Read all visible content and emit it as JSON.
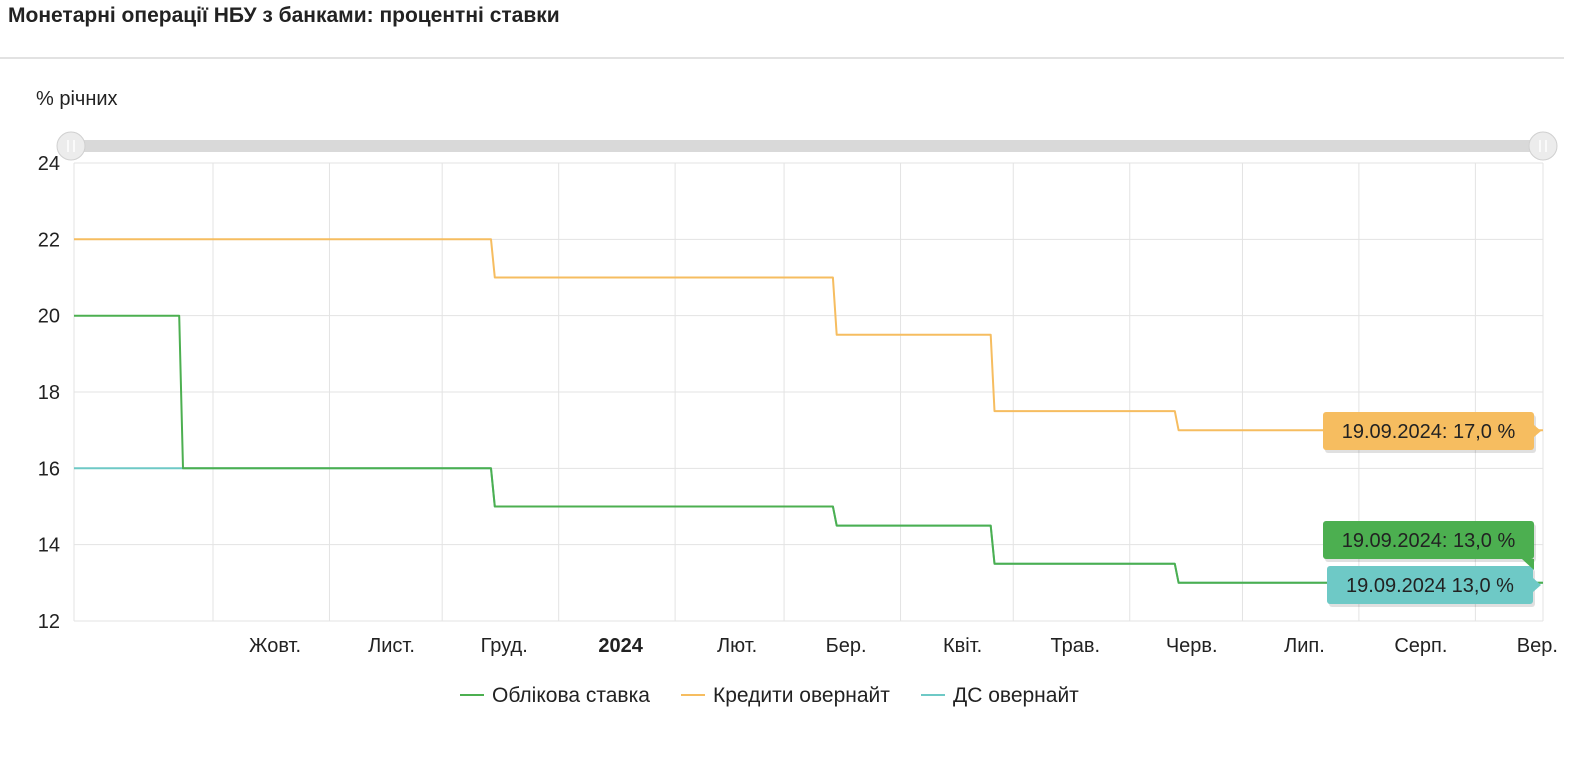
{
  "page": {
    "title": "Монетарні операції НБУ з банками: процентні ставки"
  },
  "chart_data": {
    "type": "line",
    "step": true,
    "title": "Монетарні операції НБУ з банками: процентні ставки",
    "ylabel": "% річних",
    "ylim": [
      12,
      24
    ],
    "yticks": [
      "12",
      "14",
      "16",
      "18",
      "20",
      "22",
      "24"
    ],
    "xlim": [
      "2023-08-25",
      "2024-09-19"
    ],
    "xticks": [
      {
        "date": "2023-10-01",
        "label": "Жовт.",
        "bold": false
      },
      {
        "date": "2023-11-01",
        "label": "Лист.",
        "bold": false
      },
      {
        "date": "2023-12-01",
        "label": "Груд.",
        "bold": false
      },
      {
        "date": "2024-01-01",
        "label": "2024",
        "bold": true
      },
      {
        "date": "2024-02-01",
        "label": "Лют.",
        "bold": false
      },
      {
        "date": "2024-03-01",
        "label": "Бер.",
        "bold": false
      },
      {
        "date": "2024-04-01",
        "label": "Квіт.",
        "bold": false
      },
      {
        "date": "2024-05-01",
        "label": "Трав.",
        "bold": false
      },
      {
        "date": "2024-06-01",
        "label": "Черв.",
        "bold": false
      },
      {
        "date": "2024-07-01",
        "label": "Лип.",
        "bold": false
      },
      {
        "date": "2024-08-01",
        "label": "Серп.",
        "bold": false
      },
      {
        "date": "2024-09-01",
        "label": "Вер.",
        "bold": false
      }
    ],
    "grid": true,
    "legend_position": "bottom",
    "series": [
      {
        "name": "Облікова ставка",
        "color": "#4caf50",
        "points": [
          {
            "x": "2023-08-25",
            "y": 20
          },
          {
            "x": "2023-09-22",
            "y": 20
          },
          {
            "x": "2023-09-23",
            "y": 16
          },
          {
            "x": "2023-12-14",
            "y": 16
          },
          {
            "x": "2023-12-15",
            "y": 15
          },
          {
            "x": "2024-03-14",
            "y": 15
          },
          {
            "x": "2024-03-15",
            "y": 14.5
          },
          {
            "x": "2024-04-25",
            "y": 14.5
          },
          {
            "x": "2024-04-26",
            "y": 13.5
          },
          {
            "x": "2024-06-13",
            "y": 13.5
          },
          {
            "x": "2024-06-14",
            "y": 13
          },
          {
            "x": "2024-09-19",
            "y": 13
          }
        ]
      },
      {
        "name": "Кредити овернайт",
        "color": "#f6bd60",
        "points": [
          {
            "x": "2023-08-25",
            "y": 22
          },
          {
            "x": "2023-12-14",
            "y": 22
          },
          {
            "x": "2023-12-15",
            "y": 21
          },
          {
            "x": "2024-03-14",
            "y": 21
          },
          {
            "x": "2024-03-15",
            "y": 19.5
          },
          {
            "x": "2024-04-25",
            "y": 19.5
          },
          {
            "x": "2024-04-26",
            "y": 17.5
          },
          {
            "x": "2024-06-13",
            "y": 17.5
          },
          {
            "x": "2024-06-14",
            "y": 17
          },
          {
            "x": "2024-09-19",
            "y": 17
          }
        ]
      },
      {
        "name": "ДС овернайт",
        "color": "#6ec9c6",
        "points": [
          {
            "x": "2023-08-25",
            "y": 16
          },
          {
            "x": "2023-12-14",
            "y": 16
          },
          {
            "x": "2023-12-15",
            "y": 15
          },
          {
            "x": "2024-03-14",
            "y": 15
          },
          {
            "x": "2024-03-15",
            "y": 14.5
          },
          {
            "x": "2024-04-25",
            "y": 14.5
          },
          {
            "x": "2024-04-26",
            "y": 13.5
          },
          {
            "x": "2024-06-13",
            "y": 13.5
          },
          {
            "x": "2024-06-14",
            "y": 13
          },
          {
            "x": "2024-09-19",
            "y": 13
          }
        ]
      }
    ],
    "tooltips": [
      {
        "series": "Кредити овернайт",
        "text": "19.09.2024: 17,0 %",
        "color": "#f6bd60"
      },
      {
        "series": "Облікова ставка",
        "text": "19.09.2024: 13,0 %",
        "color": "#4caf50"
      },
      {
        "series": "ДС овернайт",
        "text": "19.09.2024 13,0 %",
        "color": "#6ec9c6"
      }
    ]
  },
  "range_slider": {
    "start": 0,
    "end": 1
  }
}
